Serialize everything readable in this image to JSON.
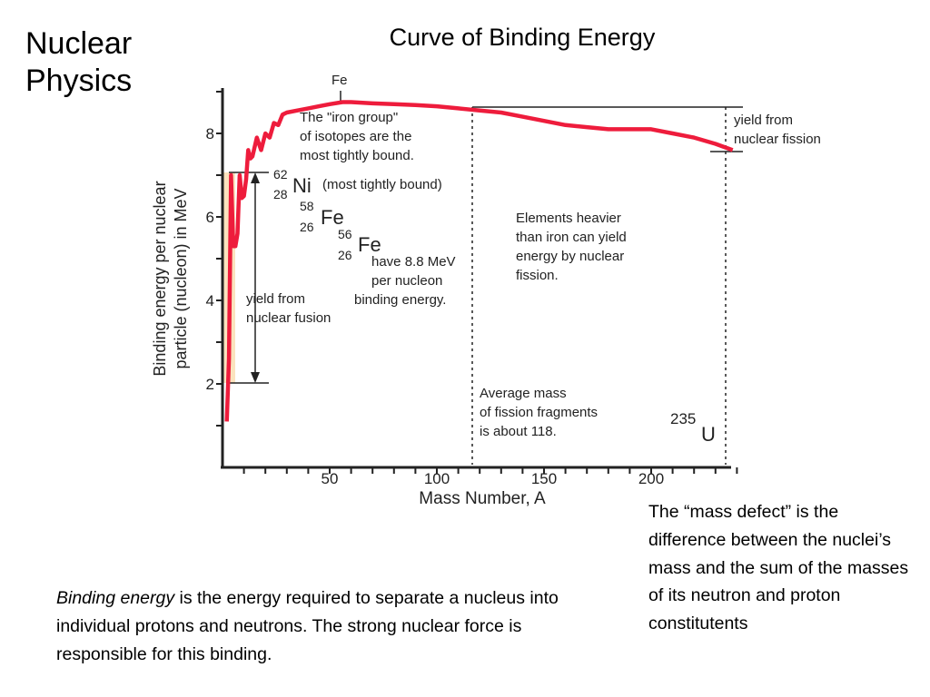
{
  "slide": {
    "title_line1": "Nuclear",
    "title_line2": "Physics"
  },
  "chart_data": {
    "type": "line",
    "title": "Curve of Binding Energy",
    "xlabel": "Mass Number, A",
    "ylabel_line1": "Binding energy per nuclear",
    "ylabel_line2": "particle (nucleon) in MeV",
    "xlim": [
      0,
      240
    ],
    "ylim": [
      0,
      9.4
    ],
    "x_ticks": [
      50,
      100,
      150,
      200
    ],
    "y_ticks": [
      2,
      4,
      6,
      8
    ],
    "series": [
      {
        "color": "#ee1c3c",
        "x": [
          2,
          3,
          4,
          5,
          6,
          7,
          8,
          9,
          10,
          11,
          12,
          13,
          14,
          16,
          18,
          20,
          22,
          24,
          26,
          28,
          30,
          35,
          40,
          45,
          50,
          56,
          60,
          70,
          80,
          90,
          100,
          110,
          120,
          130,
          140,
          150,
          160,
          170,
          180,
          190,
          200,
          210,
          220,
          230,
          238
        ],
        "y": [
          1.1,
          2.6,
          7.0,
          5.3,
          5.3,
          5.6,
          7.0,
          6.45,
          6.5,
          6.9,
          7.6,
          7.4,
          7.45,
          7.9,
          7.6,
          8.0,
          7.9,
          8.25,
          8.2,
          8.45,
          8.5,
          8.55,
          8.6,
          8.65,
          8.7,
          8.75,
          8.75,
          8.72,
          8.7,
          8.68,
          8.65,
          8.6,
          8.55,
          8.5,
          8.4,
          8.3,
          8.2,
          8.15,
          8.1,
          8.1,
          8.1,
          8.0,
          7.9,
          7.75,
          7.6
        ]
      }
    ],
    "annotations": {
      "fe_top": "Fe",
      "iron_group_1": "The \"iron group\"",
      "iron_group_2": "of isotopes are the",
      "iron_group_3": "most tightly bound.",
      "ni_mass": "62",
      "ni_z": "28",
      "ni_sym": "Ni",
      "ni_note": "(most tightly bound)",
      "fe58_mass": "58",
      "fe58_z": "26",
      "fe58_sym": "Fe",
      "fe56_mass": "56",
      "fe56_z": "26",
      "fe56_sym": "Fe",
      "have_1": "have 8.8 MeV",
      "have_2": "per nucleon",
      "have_3": "binding energy.",
      "fusion_1": "yield from",
      "fusion_2": "nuclear fusion",
      "fission_1": "yield from",
      "fission_2": "nuclear fission",
      "heavier_1": "Elements heavier",
      "heavier_2": "than iron can yield",
      "heavier_3": "energy by nuclear",
      "heavier_4": "fission.",
      "avg_1": "Average mass",
      "avg_2": "of fission fragments",
      "avg_3": "is about 118.",
      "u_mass": "235",
      "u_sym": "U"
    }
  },
  "notes": {
    "right": "The “mass defect” is the difference between the nuclei’s mass and the sum of the masses of  its neutron and proton constitutents",
    "bottom_em": "Binding energy",
    "bottom_rest": " is the energy required to separate a nucleus into individual protons and neutrons. The strong nuclear force is responsible for this binding."
  }
}
